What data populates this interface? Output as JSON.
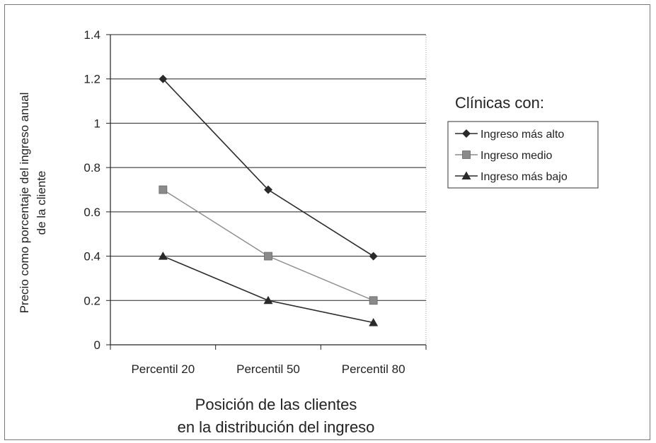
{
  "chart_data": {
    "type": "line",
    "categories": [
      "Percentil 20",
      "Percentil 50",
      "Percentil 80"
    ],
    "series": [
      {
        "name": "Ingreso más alto",
        "values": [
          1.2,
          0.7,
          0.4
        ],
        "marker": "diamond",
        "color": "#2a2a2a"
      },
      {
        "name": "Ingreso medio",
        "values": [
          0.7,
          0.4,
          0.2
        ],
        "marker": "square",
        "color": "#8a8a8a"
      },
      {
        "name": "Ingreso más bajo",
        "values": [
          0.4,
          0.2,
          0.1
        ],
        "marker": "triangle",
        "color": "#2a2a2a"
      }
    ],
    "ylim": [
      0,
      1.4
    ],
    "yticks": [
      "0",
      "0.2",
      "0.4",
      "0.6",
      "0.8",
      "1",
      "1.2",
      "1.4"
    ],
    "ylabel_line1": "Precio como porcentaje del ingreso anual",
    "ylabel_line2": "de la cliente",
    "xlabel_line1": "Posición de las clientes",
    "xlabel_line2": "en la distribución del ingreso",
    "legend_title": "Clínicas con:",
    "legend_position": "right",
    "grid": true
  }
}
